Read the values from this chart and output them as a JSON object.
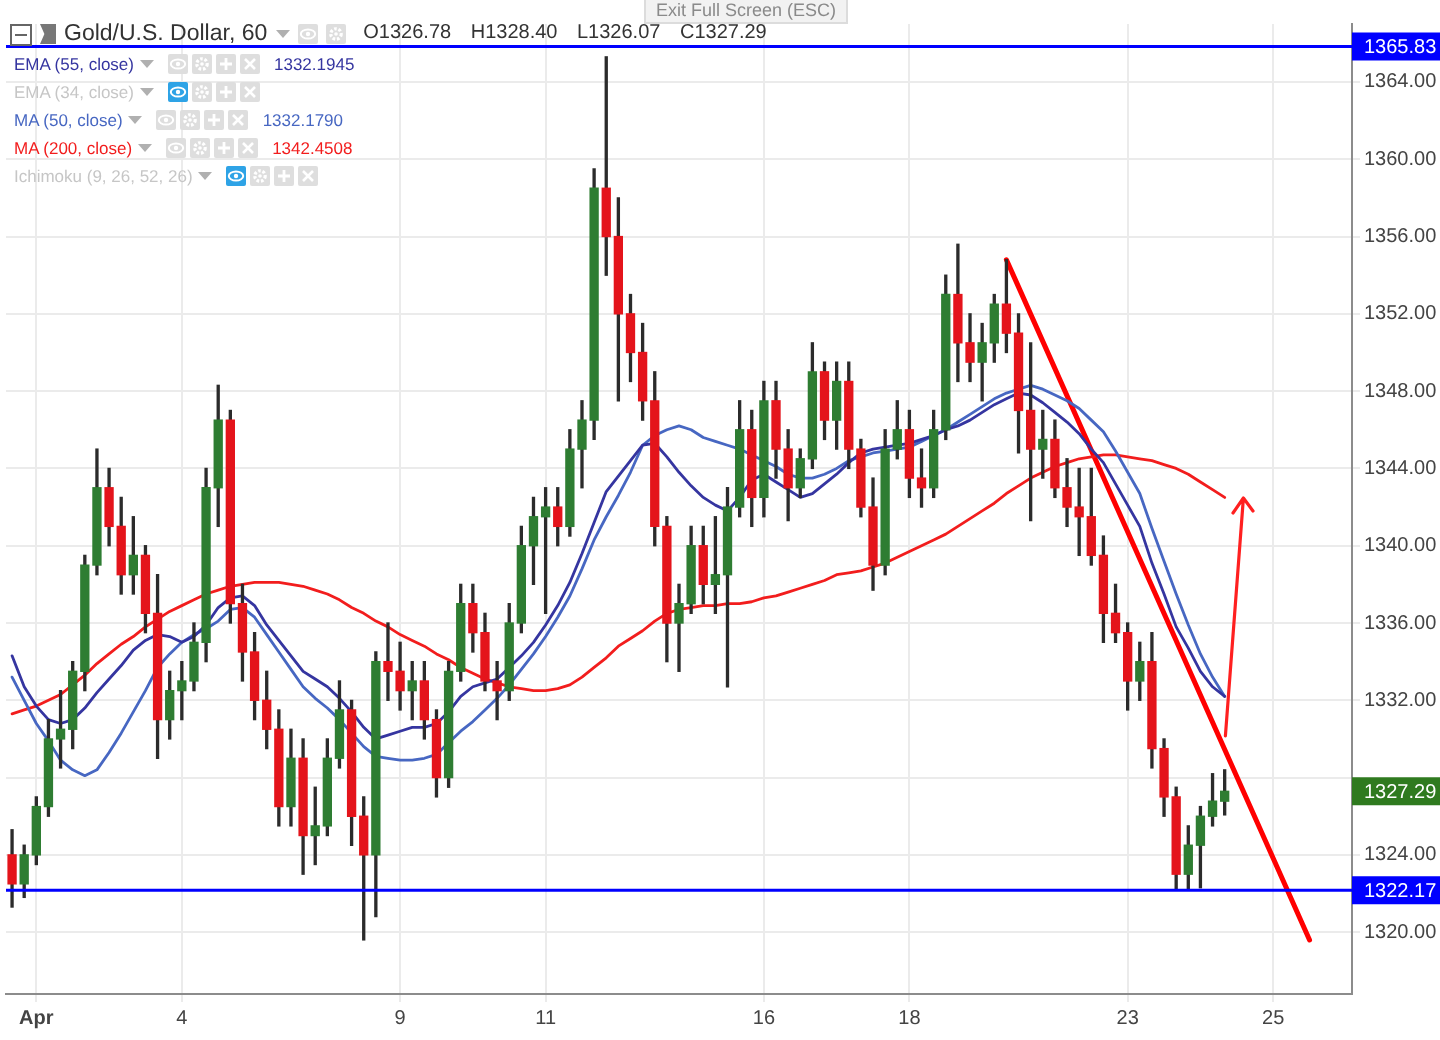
{
  "chart_data": {
    "type": "candlestick",
    "title": "Gold/U.S. Dollar, 60",
    "subtitle": "O1326.78 H1328.40 L1326.07 C1327.29",
    "annotations": [
      "1332.1945",
      "1332.1790",
      "1342.4508",
      "Exit Full Screen (ESC)"
    ],
    "categories": [
      null,
      null,
      "Apr",
      null,
      null,
      null,
      null,
      null,
      null,
      null,
      null,
      null,
      null,
      null,
      "4",
      null,
      null,
      null,
      null,
      null,
      null,
      null,
      null,
      null,
      null,
      null,
      null,
      null,
      null,
      null,
      null,
      null,
      "9",
      null,
      null,
      null,
      null,
      null,
      null,
      null,
      null,
      null,
      null,
      null,
      "11",
      null,
      null,
      null,
      null,
      null,
      null,
      null,
      null,
      null,
      null,
      null,
      null,
      null,
      null,
      null,
      null,
      null,
      "16",
      null,
      null,
      null,
      null,
      null,
      null,
      null,
      null,
      null,
      null,
      null,
      "18",
      null,
      null,
      null,
      null,
      null,
      null,
      null,
      null,
      null,
      null,
      null,
      null,
      null,
      null,
      null,
      null,
      null,
      "23",
      null,
      null,
      null,
      null,
      null,
      null,
      null,
      null,
      null,
      null,
      null,
      "25",
      null,
      null,
      null,
      null,
      null,
      null
    ],
    "ohlc": [
      [
        1324,
        1325.3,
        1321.3,
        1322.5
      ],
      [
        1322.5,
        1324.5,
        1321.8,
        1324
      ],
      [
        1324,
        1327,
        1323.5,
        1326.5
      ],
      [
        1326.5,
        1331,
        1326,
        1330
      ],
      [
        1330,
        1332.5,
        1328.5,
        1330.5
      ],
      [
        1330.5,
        1334,
        1329.5,
        1333.5
      ],
      [
        1333.5,
        1339.5,
        1332.5,
        1339
      ],
      [
        1339,
        1345,
        1338.5,
        1343
      ],
      [
        1343,
        1344,
        1340,
        1341
      ],
      [
        1341,
        1342.5,
        1337.5,
        1338.5
      ],
      [
        1338.5,
        1341.5,
        1337.5,
        1339.5
      ],
      [
        1339.5,
        1340,
        1335.5,
        1336.5
      ],
      [
        1336.5,
        1338.5,
        1329,
        1331
      ],
      [
        1331,
        1333.5,
        1330,
        1332.5
      ],
      [
        1332.5,
        1334,
        1331,
        1333
      ],
      [
        1333,
        1336,
        1332.5,
        1335
      ],
      [
        1335,
        1344,
        1334,
        1343
      ],
      [
        1343,
        1348.3,
        1341,
        1346.5
      ],
      [
        1346.5,
        1347,
        1336,
        1337
      ],
      [
        1337,
        1338,
        1333,
        1334.5
      ],
      [
        1334.5,
        1335.5,
        1331,
        1332
      ],
      [
        1332,
        1333.5,
        1329.5,
        1330.5
      ],
      [
        1330.5,
        1331.5,
        1325.5,
        1326.5
      ],
      [
        1326.5,
        1330.5,
        1325.5,
        1329
      ],
      [
        1329,
        1330,
        1323,
        1325
      ],
      [
        1325,
        1327.5,
        1323.5,
        1325.5
      ],
      [
        1325.5,
        1330,
        1325,
        1329
      ],
      [
        1329,
        1333,
        1328.5,
        1331.5
      ],
      [
        1331.5,
        1332,
        1324.5,
        1326
      ],
      [
        1326,
        1327,
        1319.6,
        1324
      ],
      [
        1324,
        1334.5,
        1320.8,
        1334
      ],
      [
        1334,
        1336,
        1332,
        1333.5
      ],
      [
        1333.5,
        1335,
        1331.5,
        1332.5
      ],
      [
        1332.5,
        1334,
        1331,
        1333
      ],
      [
        1333,
        1334,
        1330,
        1331
      ],
      [
        1331,
        1331.5,
        1327,
        1328
      ],
      [
        1328,
        1334,
        1327.5,
        1333.5
      ],
      [
        1333.5,
        1338,
        1333,
        1337
      ],
      [
        1337,
        1338,
        1334.5,
        1335.5
      ],
      [
        1335.5,
        1336.5,
        1332.5,
        1333
      ],
      [
        1333,
        1334,
        1331,
        1332.5
      ],
      [
        1332.5,
        1337,
        1332,
        1336
      ],
      [
        1336,
        1341,
        1335.5,
        1340
      ],
      [
        1340,
        1342.5,
        1338,
        1341.5
      ],
      [
        1341.5,
        1343,
        1336.5,
        1342
      ],
      [
        1342,
        1343,
        1340,
        1341
      ],
      [
        1341,
        1346,
        1340.5,
        1345
      ],
      [
        1345,
        1347.5,
        1343,
        1346.5
      ],
      [
        1346.5,
        1359.5,
        1345.5,
        1358.5
      ],
      [
        1358.5,
        1365.3,
        1354,
        1356
      ],
      [
        1356,
        1358,
        1347.5,
        1352
      ],
      [
        1352,
        1353,
        1348.5,
        1350
      ],
      [
        1350,
        1351.5,
        1346.5,
        1347.5
      ],
      [
        1347.5,
        1349,
        1340,
        1341
      ],
      [
        1341,
        1341.5,
        1334,
        1336
      ],
      [
        1336,
        1338,
        1333.5,
        1337
      ],
      [
        1337,
        1341,
        1336.5,
        1340
      ],
      [
        1340,
        1341,
        1337,
        1338
      ],
      [
        1338,
        1341.5,
        1336.5,
        1338.5
      ],
      [
        1338.5,
        1343,
        1332.7,
        1342
      ],
      [
        1342,
        1347.5,
        1341.5,
        1346
      ],
      [
        1346,
        1347,
        1341,
        1342.5
      ],
      [
        1342.5,
        1348.5,
        1341.5,
        1347.5
      ],
      [
        1347.5,
        1348.5,
        1343.5,
        1345
      ],
      [
        1345,
        1346,
        1341.3,
        1343
      ],
      [
        1343,
        1345,
        1342.5,
        1344.5
      ],
      [
        1344.5,
        1350.5,
        1344,
        1349
      ],
      [
        1349,
        1349.5,
        1345.5,
        1346.5
      ],
      [
        1346.5,
        1349.5,
        1345,
        1348.5
      ],
      [
        1348.5,
        1349.5,
        1344,
        1345
      ],
      [
        1345,
        1345.5,
        1341.5,
        1342
      ],
      [
        1342,
        1343.5,
        1337.7,
        1339
      ],
      [
        1339,
        1346,
        1338.5,
        1345
      ],
      [
        1345,
        1347.5,
        1344.5,
        1346
      ],
      [
        1346,
        1347,
        1342.5,
        1343.5
      ],
      [
        1343.5,
        1345,
        1342,
        1343
      ],
      [
        1343,
        1347,
        1342.5,
        1346
      ],
      [
        1346,
        1354,
        1345.5,
        1353
      ],
      [
        1353,
        1355.6,
        1348.5,
        1350.5
      ],
      [
        1350.5,
        1352,
        1348.5,
        1349.5
      ],
      [
        1349.5,
        1351.5,
        1347.5,
        1350.5
      ],
      [
        1350.5,
        1353,
        1349.5,
        1352.5
      ],
      [
        1352.5,
        1354.8,
        1350,
        1351
      ],
      [
        1351,
        1352,
        1344.8,
        1347
      ],
      [
        1347,
        1350.5,
        1341.3,
        1345
      ],
      [
        1345,
        1347,
        1343.5,
        1345.5
      ],
      [
        1345.5,
        1346.5,
        1342.5,
        1343
      ],
      [
        1343,
        1344.5,
        1341,
        1342
      ],
      [
        1342,
        1344,
        1339.5,
        1341.5
      ],
      [
        1341.5,
        1344,
        1339,
        1339.5
      ],
      [
        1339.5,
        1340.5,
        1335,
        1336.5
      ],
      [
        1336.5,
        1338,
        1335,
        1335.5
      ],
      [
        1335.5,
        1336,
        1331.5,
        1333
      ],
      [
        1333,
        1335,
        1332,
        1334
      ],
      [
        1334,
        1335.5,
        1328.5,
        1329.5
      ],
      [
        1329.5,
        1330,
        1326,
        1327
      ],
      [
        1327,
        1327.5,
        1322.2,
        1323
      ],
      [
        1323,
        1325.5,
        1322.2,
        1324.5
      ],
      [
        1324.5,
        1326.5,
        1322.3,
        1326
      ],
      [
        1326,
        1328.2,
        1325.5,
        1326.78
      ],
      [
        1326.78,
        1328.4,
        1326.07,
        1327.29
      ],
      null,
      null,
      null,
      null,
      null,
      null,
      null,
      null,
      null,
      null
    ],
    "value_labels": [
      null,
      null,
      null,
      null,
      null,
      null,
      null,
      null,
      null,
      null,
      null,
      null,
      null,
      null,
      null,
      null,
      null,
      null,
      null,
      null,
      null,
      null,
      null,
      null,
      null,
      null,
      null,
      null,
      null,
      null,
      null,
      null,
      null,
      null,
      null,
      null,
      null,
      null,
      null,
      null,
      null,
      null,
      null,
      null,
      null,
      null,
      null,
      null,
      null,
      null,
      null,
      null,
      null,
      null,
      null,
      null,
      null,
      null,
      null,
      null,
      null,
      null,
      null,
      null,
      null,
      null,
      null,
      null,
      null,
      null,
      null,
      null,
      null,
      null,
      null,
      null,
      null,
      null,
      null,
      null,
      null,
      null,
      null,
      null,
      null,
      null,
      null,
      null,
      null,
      null,
      null,
      null,
      null,
      null,
      null,
      null,
      null,
      null,
      null,
      null,
      "1327.29",
      null,
      null,
      null,
      null,
      null,
      null,
      null,
      null,
      null,
      null
    ],
    "series": [
      {
        "name": "EMA (55, close)",
        "type": "line",
        "color": "#3535a0",
        "values": [
          1334.3,
          1332.7,
          1331.7,
          1331.0,
          1330.8,
          1331.0,
          1331.6,
          1332.4,
          1333.1,
          1333.8,
          1334.6,
          1335.1,
          1335.4,
          1335.3,
          1335.0,
          1335.3,
          1335.9,
          1336.8,
          1337.3,
          1337.4,
          1336.9,
          1335.9,
          1335.1,
          1334.3,
          1333.5,
          1333.1,
          1332.7,
          1332.1,
          1331.4,
          1330.6,
          1330.0,
          1330.2,
          1330.4,
          1330.6,
          1330.6,
          1330.8,
          1331.4,
          1332.2,
          1332.7,
          1332.9,
          1333.1,
          1333.7,
          1334.3,
          1335.0,
          1335.9,
          1336.9,
          1338.1,
          1339.6,
          1341.2,
          1342.8,
          1343.6,
          1344.4,
          1345.2,
          1345.3,
          1344.6,
          1343.8,
          1343.1,
          1342.5,
          1342.1,
          1341.8,
          1342.5,
          1343.4,
          1343.7,
          1343.3,
          1342.9,
          1342.5,
          1342.7,
          1343.2,
          1343.7,
          1344.3,
          1344.8,
          1345.0,
          1345.1,
          1345.2,
          1345.3,
          1345.5,
          1345.7,
          1346.0,
          1346.2,
          1346.5,
          1346.9,
          1347.3,
          1347.6,
          1347.9,
          1347.8,
          1347.4,
          1346.9,
          1346.4,
          1345.8,
          1345.0,
          1344.3,
          1343.2,
          1342.1,
          1341.0,
          1339.1,
          1337.5,
          1335.8,
          1334.7,
          1333.5,
          1332.7,
          1332.2,
          null,
          null,
          null,
          null,
          null,
          null,
          null,
          null,
          null,
          null
        ]
      },
      {
        "name": "EMA (34, close)",
        "type": "line",
        "values": [
          null,
          null,
          null,
          null,
          null,
          null,
          null,
          null,
          null,
          null,
          null,
          null,
          null,
          null,
          null,
          null,
          null,
          null,
          null,
          null,
          null,
          null,
          null,
          null,
          null,
          null,
          null,
          null,
          null,
          null,
          null,
          null,
          null,
          null,
          null,
          null,
          null,
          null,
          null,
          null,
          null,
          null,
          null,
          null,
          null,
          null,
          null,
          null,
          null,
          null,
          null,
          null,
          null,
          null,
          null,
          null,
          null,
          null,
          null,
          null,
          null,
          null,
          null,
          null,
          null,
          null,
          null,
          null,
          null,
          null,
          null,
          null,
          null,
          null,
          null,
          null,
          null,
          null,
          null,
          null,
          null,
          null,
          null,
          null,
          null,
          null,
          null,
          null,
          null,
          null,
          null,
          null,
          null,
          null,
          null,
          null,
          null,
          null,
          null,
          null,
          null,
          null,
          null,
          null,
          null,
          null,
          null,
          null,
          null,
          null,
          null
        ]
      },
      {
        "name": "MA (50, close)",
        "type": "line",
        "color": "#4767c2",
        "values": [
          1333.2,
          1332.0,
          1330.8,
          1329.9,
          1328.9,
          1328.4,
          1328.1,
          1328.4,
          1329.3,
          1330.3,
          1331.4,
          1332.5,
          1333.7,
          1334.4,
          1335.0,
          1335.4,
          1335.7,
          1336.1,
          1336.7,
          1336.8,
          1336.3,
          1335.4,
          1334.5,
          1333.6,
          1332.7,
          1332.1,
          1331.6,
          1331.0,
          1330.3,
          1329.6,
          1329.1,
          1329.0,
          1328.9,
          1328.9,
          1329.0,
          1329.2,
          1329.8,
          1330.4,
          1330.9,
          1331.5,
          1332.1,
          1332.8,
          1333.6,
          1334.4,
          1335.3,
          1336.3,
          1337.4,
          1338.8,
          1340.3,
          1341.5,
          1342.6,
          1343.8,
          1345.2,
          1345.7,
          1346.0,
          1346.2,
          1346.0,
          1345.6,
          1345.4,
          1345.2,
          1345.0,
          1344.7,
          1344.4,
          1344.1,
          1343.7,
          1343.5,
          1343.5,
          1343.7,
          1344.0,
          1344.4,
          1344.6,
          1344.8,
          1344.9,
          1345.0,
          1345.1,
          1345.4,
          1345.7,
          1346.0,
          1346.4,
          1346.8,
          1347.2,
          1347.6,
          1347.9,
          1348.1,
          1348.3,
          1348.1,
          1347.8,
          1347.5,
          1347.1,
          1346.5,
          1345.9,
          1344.9,
          1343.8,
          1342.7,
          1340.9,
          1339.2,
          1337.5,
          1335.9,
          1334.4,
          1333.2,
          1332.2,
          null,
          null,
          null,
          null,
          null,
          null,
          null,
          null,
          null,
          null
        ]
      },
      {
        "name": "MA (200, close)",
        "type": "line",
        "color": "#f21d1d",
        "values": [
          1331.3,
          1331.5,
          1331.7,
          1332.0,
          1332.3,
          1332.8,
          1333.3,
          1333.9,
          1334.4,
          1334.9,
          1335.3,
          1335.8,
          1336.2,
          1336.6,
          1336.9,
          1337.2,
          1337.5,
          1337.7,
          1337.9,
          1338.0,
          1338.1,
          1338.1,
          1338.1,
          1338.0,
          1337.9,
          1337.7,
          1337.5,
          1337.2,
          1336.8,
          1336.5,
          1336.1,
          1335.8,
          1335.4,
          1335.1,
          1334.8,
          1334.4,
          1334.1,
          1333.7,
          1333.4,
          1333.1,
          1332.9,
          1332.7,
          1332.6,
          1332.5,
          1332.5,
          1332.6,
          1332.8,
          1333.2,
          1333.7,
          1334.2,
          1334.8,
          1335.2,
          1335.6,
          1336.1,
          1336.5,
          1336.7,
          1336.8,
          1336.9,
          1336.9,
          1337.0,
          1337.0,
          1337.1,
          1337.3,
          1337.4,
          1337.6,
          1337.8,
          1338.0,
          1338.2,
          1338.5,
          1338.6,
          1338.7,
          1338.9,
          1339.1,
          1339.4,
          1339.7,
          1340.0,
          1340.3,
          1340.6,
          1341.0,
          1341.4,
          1341.8,
          1342.2,
          1342.7,
          1343.1,
          1343.5,
          1343.8,
          1344.1,
          1344.3,
          1344.5,
          1344.6,
          1344.7,
          1344.7,
          1344.6,
          1344.5,
          1344.4,
          1344.2,
          1344.0,
          1343.7,
          1343.3,
          1342.9,
          1342.5,
          null,
          null,
          null,
          null,
          null,
          null,
          null,
          null,
          null,
          null
        ]
      },
      {
        "name": "Ichimoku (9, 26, 52, 26)",
        "type": "line",
        "values": [
          null,
          null,
          null,
          null,
          null,
          null,
          null,
          null,
          null,
          null,
          null,
          null,
          null,
          null,
          null,
          null,
          null,
          null,
          null,
          null,
          null,
          null,
          null,
          null,
          null,
          null,
          null,
          null,
          null,
          null,
          null,
          null,
          null,
          null,
          null,
          null,
          null,
          null,
          null,
          null,
          null,
          null,
          null,
          null,
          null,
          null,
          null,
          null,
          null,
          null,
          null,
          null,
          null,
          null,
          null,
          null,
          null,
          null,
          null,
          null,
          null,
          null,
          null,
          null,
          null,
          null,
          null,
          null,
          null,
          null,
          null,
          null,
          null,
          null,
          null,
          null,
          null,
          null,
          null,
          null,
          null,
          null,
          null,
          null,
          null,
          null,
          null,
          null,
          null,
          null,
          null,
          null,
          null,
          null,
          null,
          null,
          null,
          null,
          null,
          null,
          null,
          null,
          null,
          null,
          null,
          null,
          null,
          null,
          null,
          null,
          null
        ]
      },
      {
        "type": "line",
        "color": "#ff0000",
        "values": [
          null,
          null,
          null,
          null,
          null,
          null,
          null,
          null,
          null,
          null,
          null,
          null,
          null,
          null,
          null,
          null,
          null,
          null,
          null,
          null,
          null,
          null,
          null,
          null,
          null,
          null,
          null,
          null,
          null,
          null,
          null,
          null,
          null,
          null,
          null,
          null,
          null,
          null,
          null,
          null,
          null,
          null,
          null,
          null,
          null,
          null,
          null,
          null,
          null,
          null,
          null,
          null,
          null,
          null,
          null,
          null,
          null,
          null,
          null,
          null,
          null,
          null,
          null,
          null,
          null,
          null,
          null,
          null,
          null,
          null,
          null,
          null,
          null,
          null,
          null,
          null,
          null,
          null,
          null,
          null,
          null,
          null,
          1354.8,
          null,
          null,
          null,
          null,
          null,
          null,
          null,
          null,
          null,
          null,
          null,
          null,
          null,
          null,
          null,
          null,
          null,
          null,
          null,
          null,
          null,
          null,
          null,
          null,
          1319.6,
          null,
          null,
          null
        ]
      }
    ],
    "ylim": [
      1316.8,
      1367
    ],
    "yticks": [
      {
        "value": 1320,
        "label": "1320.00"
      },
      {
        "value": 1324,
        "label": "1324.00"
      },
      {
        "value": 1328,
        "label": null
      },
      {
        "value": 1332,
        "label": "1332.00"
      },
      {
        "value": 1336,
        "label": "1336.00"
      },
      {
        "value": 1340,
        "label": "1340.00"
      },
      {
        "value": 1344,
        "label": "1344.00"
      },
      {
        "value": 1348,
        "label": "1348.00"
      },
      {
        "value": 1352,
        "label": "1352.00"
      },
      {
        "value": 1356,
        "label": "1356.00"
      },
      {
        "value": 1360,
        "label": "1360.00"
      },
      {
        "value": 1364,
        "label": "1364.00"
      }
    ],
    "ref_lines": [
      {
        "axis": "y",
        "value": 1365.83,
        "label": "1365.83",
        "color": "#0000ff"
      },
      {
        "axis": "y",
        "value": 1322.17,
        "label": "1322.17",
        "color": "#0000ff"
      }
    ],
    "grid": true,
    "legend": "top left"
  }
}
